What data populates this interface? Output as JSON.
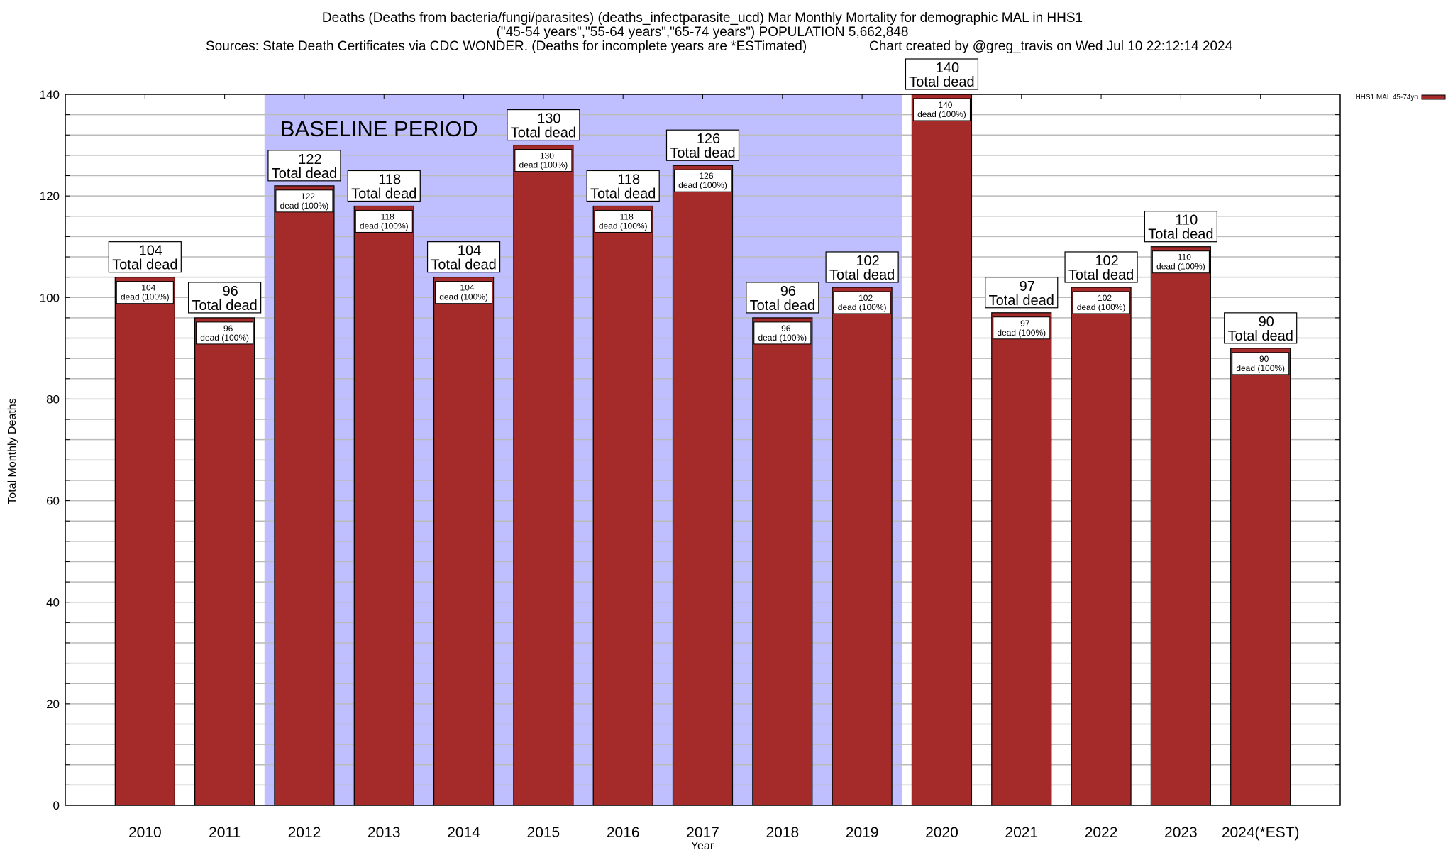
{
  "chart_data": {
    "type": "bar",
    "title_lines": [
      "Deaths (Deaths from bacteria/fungi/parasites) (deaths_infectparasite_ucd) Mar Monthly Mortality for demographic MAL in HHS1",
      "(\"45-54 years\",\"55-64 years\",\"65-74 years\") POPULATION 5,662,848"
    ],
    "sources": "Sources: State Death Certificates via CDC WONDER. (Deaths for incomplete years are *ESTimated)",
    "credit": "Chart created by @greg_travis on Wed Jul 10 22:12:14 2024",
    "xlabel": "Year",
    "ylabel": "Total Monthly Deaths",
    "ylim": [
      0,
      140
    ],
    "yticks": [
      0,
      20,
      40,
      60,
      80,
      100,
      120,
      140
    ],
    "grid": true,
    "legend_position": "top-right",
    "categories": [
      "2010",
      "2011",
      "2012",
      "2013",
      "2014",
      "2015",
      "2016",
      "2017",
      "2018",
      "2019",
      "2020",
      "2021",
      "2022",
      "2023",
      "2024(*EST)"
    ],
    "series": [
      {
        "name": "HHS1 MAL 45-74yo",
        "color": "#a52a2a",
        "values": [
          104,
          96,
          122,
          118,
          104,
          130,
          118,
          126,
          96,
          102,
          140,
          97,
          102,
          110,
          90
        ]
      }
    ],
    "outer_label_suffix": "Total dead",
    "inner_label_suffix": "dead (100%)",
    "baseline": {
      "label": "BASELINE PERIOD",
      "from": "2012",
      "to": "2019",
      "color": "#bfbfff"
    }
  }
}
